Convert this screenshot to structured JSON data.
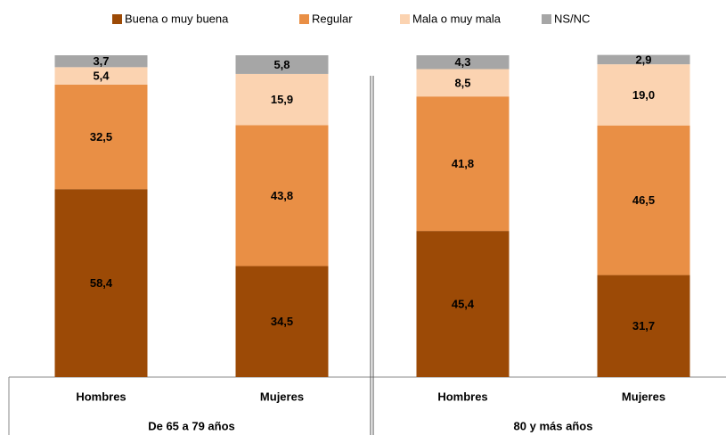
{
  "chart_data": {
    "type": "bar",
    "stacked": true,
    "categories": [
      "Hombres",
      "Mujeres",
      "Hombres",
      "Mujeres"
    ],
    "groups": [
      "De 65 a 79 años",
      "80 y más años"
    ],
    "ylim": [
      0,
      100
    ],
    "series": [
      {
        "name": "Buena o muy buena",
        "color": "#9c4a06",
        "values": [
          58.4,
          34.5,
          45.4,
          31.7
        ],
        "value_labels": [
          "58,4",
          "34,5",
          "45,4",
          "31,7"
        ]
      },
      {
        "name": "Regular",
        "color": "#e98f45",
        "values": [
          32.5,
          43.8,
          41.8,
          46.5
        ],
        "value_labels": [
          "32,5",
          "43,8",
          "41,8",
          "46,5"
        ]
      },
      {
        "name": "Mala o muy mala",
        "color": "#fbd3b1",
        "values": [
          5.4,
          15.9,
          8.5,
          19.0
        ],
        "value_labels": [
          "5,4",
          "15,9",
          "8,5",
          "19,0"
        ]
      },
      {
        "name": "NS/NC",
        "color": "#a6a6a6",
        "values": [
          3.7,
          5.8,
          4.3,
          2.9
        ],
        "value_labels": [
          "3,7",
          "5,8",
          "4,3",
          "2,9"
        ]
      }
    ]
  }
}
